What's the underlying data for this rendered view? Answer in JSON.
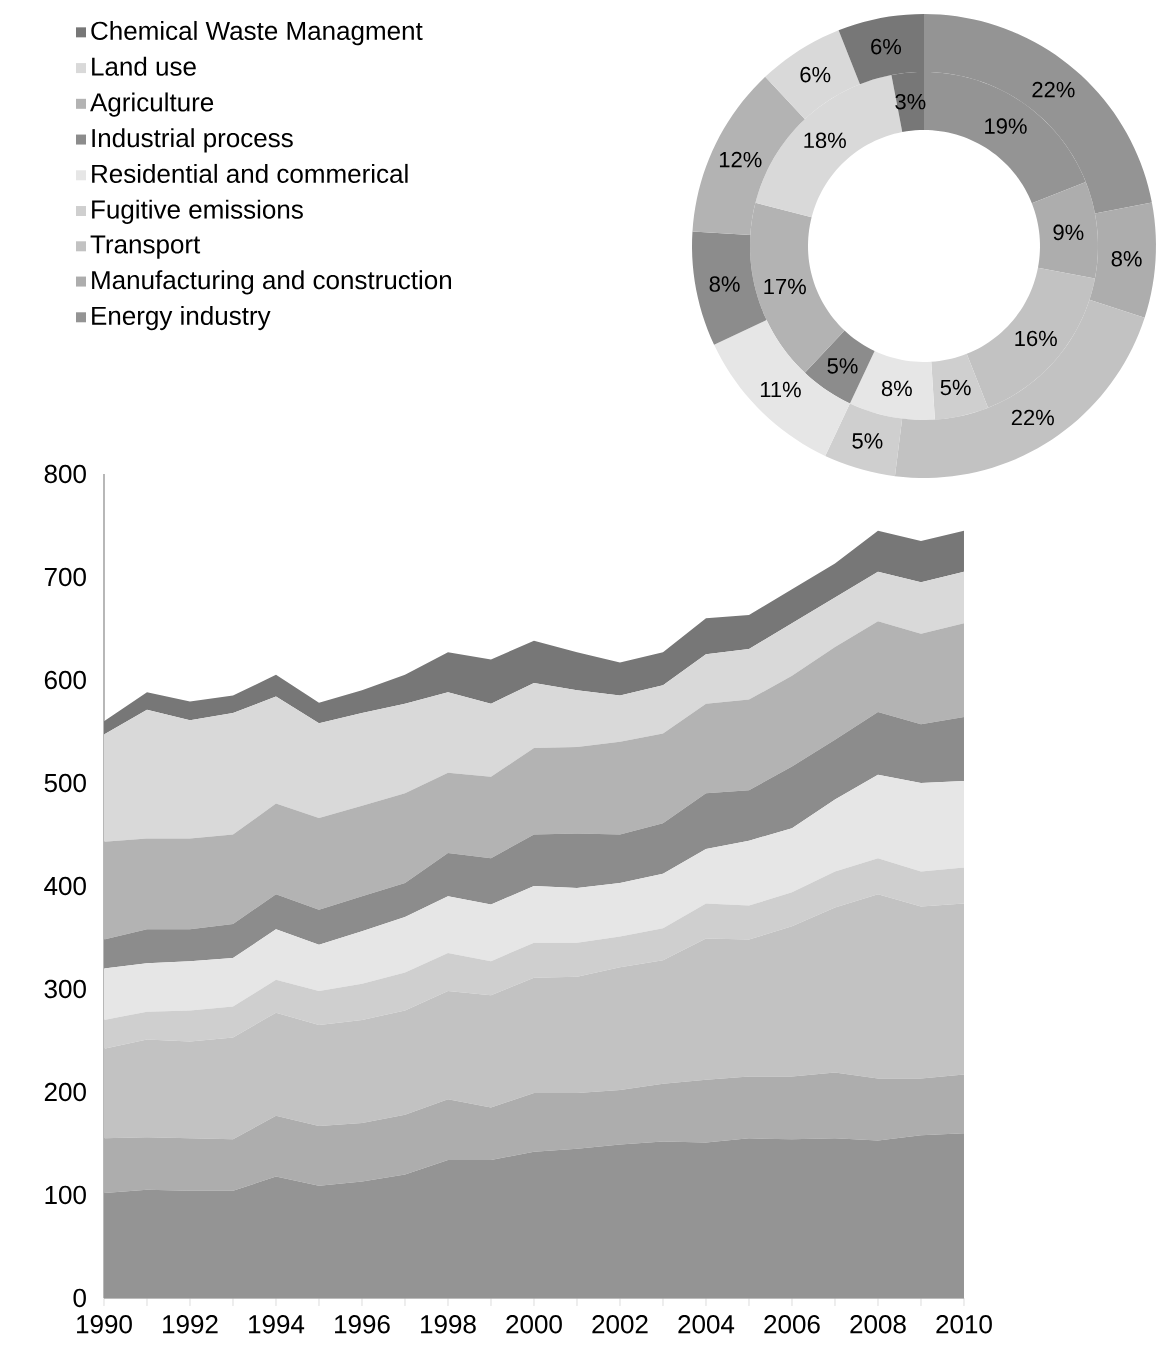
{
  "chart_data": [
    {
      "type": "area",
      "stacked": true,
      "x": [
        1990,
        1991,
        1992,
        1993,
        1994,
        1995,
        1996,
        1997,
        1998,
        1999,
        2000,
        2001,
        2002,
        2003,
        2004,
        2005,
        2006,
        2007,
        2008,
        2009,
        2010
      ],
      "xlim": [
        1990,
        2010
      ],
      "ylim": [
        0,
        800
      ],
      "xticks": [
        1990,
        {
          "value": 1991,
          "label": null
        },
        1992,
        {
          "value": 1993,
          "label": null
        },
        1994,
        {
          "value": 1995,
          "label": null
        },
        1996,
        {
          "value": 1997,
          "label": null
        },
        1998,
        {
          "value": 1999,
          "label": null
        },
        2000,
        {
          "value": 2001,
          "label": null
        },
        2002,
        {
          "value": 2003,
          "label": null
        },
        2004,
        {
          "value": 2005,
          "label": null
        },
        2006,
        {
          "value": 2007,
          "label": null
        },
        2008,
        {
          "value": 2009,
          "label": null
        },
        2010
      ],
      "yticks": [
        0,
        100,
        200,
        300,
        400,
        500,
        600,
        700,
        800
      ],
      "legend": "top left",
      "grid": false,
      "series": [
        {
          "name": "Energy industry",
          "color": "#949494",
          "values": [
            102,
            105,
            104,
            104,
            118,
            109,
            113,
            120,
            134,
            134,
            142,
            145,
            149,
            152,
            151,
            155,
            154,
            155,
            153,
            158,
            160
          ]
        },
        {
          "name": "Manufacturing and construction",
          "color": "#adadad",
          "values": [
            53,
            51,
            51,
            50,
            59,
            58,
            57,
            58,
            59,
            51,
            57,
            54,
            53,
            56,
            61,
            60,
            61,
            64,
            60,
            55,
            57
          ]
        },
        {
          "name": "Transport",
          "color": "#c2c2c2",
          "values": [
            87,
            95,
            94,
            99,
            100,
            98,
            100,
            101,
            105,
            109,
            112,
            113,
            119,
            120,
            137,
            133,
            146,
            160,
            179,
            167,
            166
          ]
        },
        {
          "name": "Fugitive emissions",
          "color": "#cfcfcf",
          "values": [
            28,
            27,
            30,
            30,
            32,
            33,
            35,
            37,
            37,
            33,
            34,
            33,
            30,
            31,
            34,
            33,
            33,
            35,
            35,
            34,
            35
          ]
        },
        {
          "name": "Residential and commerical",
          "color": "#e6e6e6",
          "values": [
            50,
            47,
            48,
            47,
            49,
            45,
            51,
            54,
            55,
            55,
            55,
            53,
            52,
            53,
            53,
            63,
            62,
            70,
            81,
            86,
            84
          ]
        },
        {
          "name": "Industrial process",
          "color": "#8c8c8c",
          "values": [
            28,
            33,
            31,
            33,
            34,
            34,
            34,
            33,
            42,
            45,
            50,
            53,
            47,
            49,
            54,
            49,
            60,
            58,
            61,
            57,
            62
          ]
        },
        {
          "name": "Agriculture",
          "color": "#b3b3b3",
          "values": [
            95,
            88,
            88,
            87,
            88,
            89,
            88,
            87,
            78,
            79,
            84,
            84,
            90,
            87,
            87,
            88,
            88,
            90,
            88,
            88,
            91
          ]
        },
        {
          "name": "Land use",
          "color": "#d9d9d9",
          "values": [
            104,
            125,
            115,
            118,
            104,
            92,
            90,
            87,
            78,
            71,
            63,
            55,
            45,
            47,
            48,
            49,
            51,
            48,
            48,
            50,
            50
          ]
        },
        {
          "name": "Chemical Waste Managment",
          "color": "#777777",
          "values": [
            13,
            17,
            18,
            17,
            21,
            20,
            22,
            28,
            39,
            43,
            41,
            37,
            32,
            32,
            35,
            33,
            33,
            33,
            40,
            40,
            40
          ]
        }
      ]
    },
    {
      "type": "donut",
      "categories": [
        null,
        null,
        null,
        null,
        null,
        null,
        null,
        null,
        null
      ],
      "colors": [
        "#949494",
        "#adadad",
        "#c2c2c2",
        "#cfcfcf",
        "#e6e6e6",
        "#8c8c8c",
        "#b3b3b3",
        "#d9d9d9",
        "#777777"
      ],
      "series": [
        {
          "values": [
            19,
            9,
            16,
            5,
            8,
            5,
            17,
            18,
            3
          ],
          "value_labels": [
            "19%",
            "9%",
            "16%",
            "5%",
            "8%",
            "5%",
            "17%",
            "18%",
            "3%"
          ]
        },
        {
          "values": [
            22,
            8,
            22,
            5,
            11,
            8,
            12,
            6,
            6
          ],
          "value_labels": [
            "22%",
            "8%",
            "22%",
            "5%",
            "11%",
            "8%",
            "12%",
            "6%",
            "6%"
          ]
        }
      ]
    }
  ]
}
